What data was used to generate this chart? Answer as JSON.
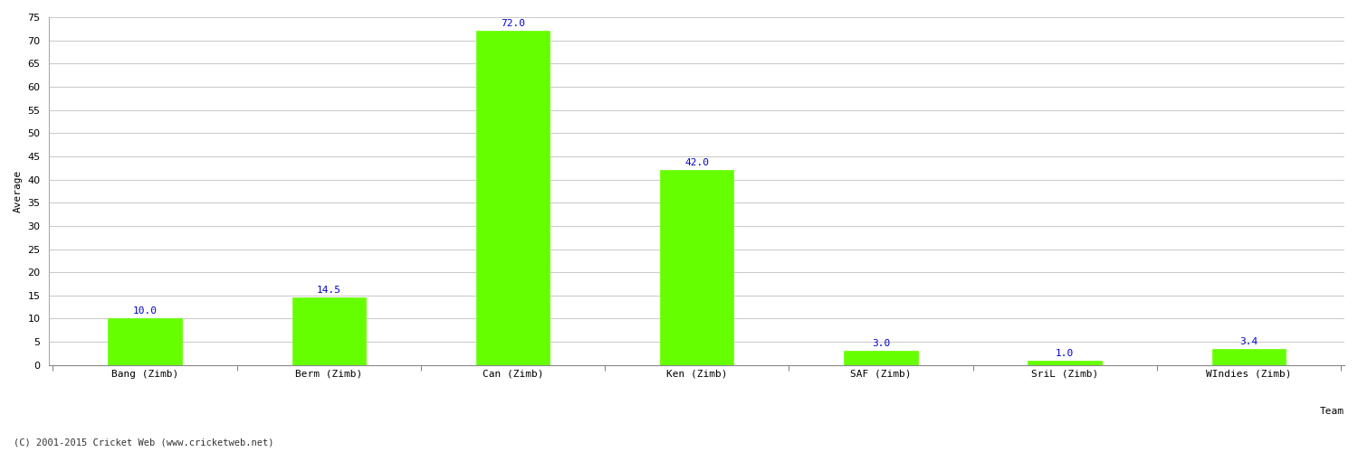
{
  "categories": [
    "Bang (Zimb)",
    "Berm (Zimb)",
    "Can (Zimb)",
    "Ken (Zimb)",
    "SAF (Zimb)",
    "SriL (Zimb)",
    "WIndies (Zimb)"
  ],
  "values": [
    10.0,
    14.5,
    72.0,
    42.0,
    3.0,
    1.0,
    3.4
  ],
  "bar_color": "#66ff00",
  "bar_edge_color": "#66ff00",
  "value_color": "#0000cc",
  "ylabel": "Average",
  "xlabel": "Team",
  "ylim": [
    0,
    75
  ],
  "yticks": [
    0,
    5,
    10,
    15,
    20,
    25,
    30,
    35,
    40,
    45,
    50,
    55,
    60,
    65,
    70,
    75
  ],
  "grid_color": "#cccccc",
  "bg_color": "#ffffff",
  "footnote": "(C) 2001-2015 Cricket Web (www.cricketweb.net)",
  "value_fontsize": 8,
  "label_fontsize": 8,
  "ylabel_fontsize": 8,
  "xlabel_fontsize": 8,
  "tick_label_fontsize": 8
}
